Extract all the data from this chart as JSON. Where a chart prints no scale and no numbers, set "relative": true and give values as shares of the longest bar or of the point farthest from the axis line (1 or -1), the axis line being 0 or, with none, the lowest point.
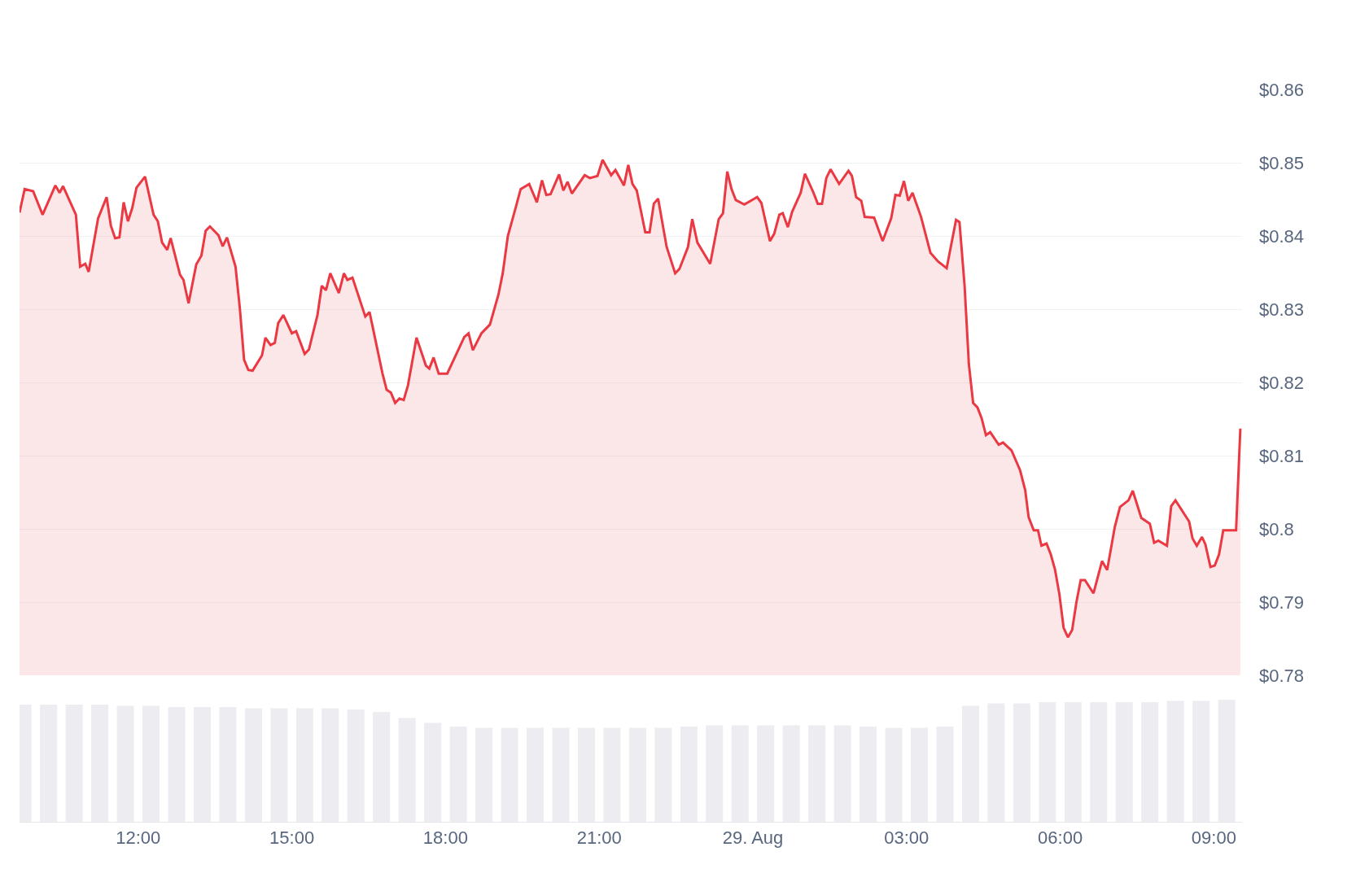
{
  "chart_data": [
    {
      "type": "area",
      "color": "#ea3943",
      "marker": "none",
      "line_style": "solid",
      "grid": "y",
      "tick_labels": "y",
      "x": [
        "--08-28T09:41",
        "--08-28T09:47",
        "--08-28T09:57",
        "--08-28T10:08",
        "--08-28T10:23",
        "--08-28T10:28",
        "--08-28T10:32",
        "--08-28T10:47",
        "--08-28T10:52",
        "--08-28T10:58",
        "--08-28T11:02",
        "--08-28T11:13",
        "--08-28T11:23",
        "--08-28T11:28",
        "--08-28T11:33",
        "--08-28T11:38",
        "--08-28T11:43",
        "--08-28T11:48",
        "--08-28T11:53",
        "--08-28T11:58",
        "--08-28T12:08",
        "--08-28T12:18",
        "--08-28T12:23",
        "--08-28T12:28",
        "--08-28T12:34",
        "--08-28T12:38",
        "--08-28T12:49",
        "--08-28T12:53",
        "--08-28T12:59",
        "--08-28T13:08",
        "--08-28T13:14",
        "--08-28T13:19",
        "--08-28T13:24",
        "--08-28T13:34",
        "--08-28T13:39",
        "--08-28T13:44",
        "--08-28T13:54",
        "--08-28T13:59",
        "--08-28T14:04",
        "--08-28T14:09",
        "--08-28T14:14",
        "--08-28T14:25",
        "--08-28T14:29",
        "--08-28T14:35",
        "--08-28T14:40",
        "--08-28T14:44",
        "--08-28T14:50",
        "--08-28T15:00",
        "--08-28T15:05",
        "--08-28T15:15",
        "--08-28T15:20",
        "--08-28T15:30",
        "--08-28T15:35",
        "--08-28T15:40",
        "--08-28T15:45",
        "--08-28T15:55",
        "--08-28T16:01",
        "--08-28T16:05",
        "--08-28T16:11",
        "--08-28T16:26",
        "--08-28T16:31",
        "--08-28T16:46",
        "--08-28T16:51",
        "--08-28T16:56",
        "--08-28T17:01",
        "--08-28T17:06",
        "--08-28T17:11",
        "--08-28T17:16",
        "--08-28T17:26",
        "--08-28T17:37",
        "--08-28T17:41",
        "--08-28T17:46",
        "--08-28T17:52",
        "--08-28T18:02",
        "--08-28T18:12",
        "--08-28T18:22",
        "--08-28T18:27",
        "--08-28T18:32",
        "--08-28T18:42",
        "--08-28T18:52",
        "--08-28T19:02",
        "--08-28T19:07",
        "--08-28T19:13",
        "--08-28T19:22",
        "--08-28T19:28",
        "--08-28T19:38",
        "--08-28T19:47",
        "--08-28T19:53",
        "--08-28T19:58",
        "--08-28T20:03",
        "--08-28T20:13",
        "--08-28T20:18",
        "--08-28T20:23",
        "--08-28T20:28",
        "--08-28T20:43",
        "--08-28T20:49",
        "--08-28T20:58",
        "--08-28T21:04",
        "--08-28T21:14",
        "--08-28T21:19",
        "--08-28T21:29",
        "--08-28T21:34",
        "--08-28T21:39",
        "--08-28T21:44",
        "--08-28T21:54",
        "--08-28T21:59",
        "--08-28T22:04",
        "--08-28T22:09",
        "--08-28T22:19",
        "--08-28T22:29",
        "--08-28T22:34",
        "--08-28T22:44",
        "--08-28T22:49",
        "--08-28T22:55",
        "--08-28T23:10",
        "--08-28T23:20",
        "--08-28T23:25",
        "--08-28T23:30",
        "--08-28T23:35",
        "--08-28T23:40",
        "--08-28T23:50",
        "--08-29T00:05",
        "--08-29T00:10",
        "--08-29T00:20",
        "--08-29T00:25",
        "--08-29T00:31",
        "--08-29T00:35",
        "--08-29T00:41",
        "--08-29T00:46",
        "--08-29T00:56",
        "--08-29T01:01",
        "--08-29T01:11",
        "--08-29T01:16",
        "--08-29T01:21",
        "--08-29T01:26",
        "--08-29T01:31",
        "--08-29T01:41",
        "--08-29T01:52",
        "--08-29T01:56",
        "--08-29T02:01",
        "--08-29T02:07",
        "--08-29T02:11",
        "--08-29T02:22",
        "--08-29T02:32",
        "--08-29T02:42",
        "--08-29T02:47",
        "--08-29T02:52",
        "--08-29T02:57",
        "--08-29T03:02",
        "--08-29T03:07",
        "--08-29T03:17",
        "--08-29T03:28",
        "--08-29T03:37",
        "--08-29T03:47",
        "--08-29T03:58",
        "--08-29T04:02",
        "--08-29T04:08",
        "--08-29T04:13",
        "--08-29T04:18",
        "--08-29T04:23",
        "--08-29T04:28",
        "--08-29T04:33",
        "--08-29T04:38",
        "--08-29T04:48",
        "--08-29T04:53",
        "--08-29T05:03",
        "--08-29T05:13",
        "--08-29T05:19",
        "--08-29T05:23",
        "--08-29T05:29",
        "--08-29T05:34",
        "--08-29T05:38",
        "--08-29T05:44",
        "--08-29T05:49",
        "--08-29T05:54",
        "--08-29T05:59",
        "--08-29T06:04",
        "--08-29T06:09",
        "--08-29T06:14",
        "--08-29T06:19",
        "--08-29T06:24",
        "--08-29T06:29",
        "--08-29T06:39",
        "--08-29T06:49",
        "--08-29T06:55",
        "--08-29T07:04",
        "--08-29T07:10",
        "--08-29T07:20",
        "--08-29T07:25",
        "--08-29T07:35",
        "--08-29T07:45",
        "--08-29T07:50",
        "--08-29T07:55",
        "--08-29T08:05",
        "--08-29T08:10",
        "--08-29T08:15",
        "--08-29T08:31",
        "--08-29T08:35",
        "--08-29T08:40",
        "--08-29T08:46",
        "--08-29T08:50",
        "--08-29T08:56",
        "--08-29T09:01",
        "--08-29T09:06",
        "--08-29T09:11",
        "--08-29T09:26",
        "--08-29T09:31"
      ],
      "values": [
        0.8432,
        0.8464,
        0.8461,
        0.8429,
        0.8469,
        0.8459,
        0.8468,
        0.8429,
        0.8358,
        0.8362,
        0.8351,
        0.8424,
        0.8453,
        0.8414,
        0.8397,
        0.8398,
        0.8446,
        0.842,
        0.8438,
        0.8466,
        0.8481,
        0.8429,
        0.842,
        0.8391,
        0.8381,
        0.8397,
        0.8347,
        0.834,
        0.8308,
        0.8361,
        0.8373,
        0.8407,
        0.8413,
        0.8401,
        0.8386,
        0.8398,
        0.8358,
        0.8302,
        0.8231,
        0.8217,
        0.8216,
        0.8237,
        0.8261,
        0.8251,
        0.8254,
        0.8281,
        0.8292,
        0.8267,
        0.827,
        0.8239,
        0.8245,
        0.8292,
        0.8332,
        0.8326,
        0.8349,
        0.8322,
        0.8349,
        0.834,
        0.8343,
        0.829,
        0.8296,
        0.8213,
        0.819,
        0.8186,
        0.8172,
        0.8178,
        0.8176,
        0.8196,
        0.8261,
        0.8223,
        0.8219,
        0.8234,
        0.8212,
        0.8212,
        0.8237,
        0.8262,
        0.8267,
        0.8244,
        0.8267,
        0.8279,
        0.832,
        0.8349,
        0.84,
        0.8438,
        0.8464,
        0.8471,
        0.8446,
        0.8476,
        0.8456,
        0.8457,
        0.8484,
        0.8462,
        0.8474,
        0.8458,
        0.8483,
        0.8479,
        0.8482,
        0.8504,
        0.8483,
        0.849,
        0.8469,
        0.8497,
        0.8471,
        0.8462,
        0.8405,
        0.8405,
        0.8444,
        0.8451,
        0.8385,
        0.8349,
        0.8355,
        0.8385,
        0.8423,
        0.8391,
        0.8362,
        0.8423,
        0.8431,
        0.8488,
        0.8464,
        0.8449,
        0.8443,
        0.8453,
        0.8445,
        0.8393,
        0.8403,
        0.8429,
        0.8431,
        0.8412,
        0.8433,
        0.8459,
        0.8485,
        0.8459,
        0.8444,
        0.8444,
        0.8479,
        0.8491,
        0.8471,
        0.8489,
        0.8482,
        0.8453,
        0.8448,
        0.8426,
        0.8425,
        0.8393,
        0.8424,
        0.8456,
        0.8455,
        0.8475,
        0.8448,
        0.8459,
        0.8426,
        0.8377,
        0.8365,
        0.8356,
        0.8422,
        0.8419,
        0.8332,
        0.8225,
        0.8172,
        0.8166,
        0.8151,
        0.8128,
        0.8132,
        0.8115,
        0.8118,
        0.8107,
        0.808,
        0.8053,
        0.8016,
        0.7998,
        0.7998,
        0.7977,
        0.798,
        0.7965,
        0.7944,
        0.7911,
        0.7865,
        0.7852,
        0.7862,
        0.79,
        0.793,
        0.793,
        0.7912,
        0.7956,
        0.7944,
        0.8003,
        0.803,
        0.8039,
        0.8052,
        0.8015,
        0.8007,
        0.7981,
        0.7984,
        0.7977,
        0.8031,
        0.8039,
        0.801,
        0.7987,
        0.7977,
        0.7989,
        0.7979,
        0.7948,
        0.795,
        0.7965,
        0.7998,
        0.7998,
        0.8137
      ],
      "xlim": [
        "--08-28T09:41",
        "--08-29T09:33"
      ],
      "xticks": [
        {
          "value": "--08-28T12:00",
          "label": "12:00"
        },
        {
          "value": "--08-28T15:00",
          "label": "15:00"
        },
        {
          "value": "--08-28T18:00",
          "label": "18:00"
        },
        {
          "value": "--08-28T21:00",
          "label": "21:00"
        },
        {
          "value": "--08-29T00:00",
          "label": "29. Aug"
        },
        {
          "value": "--08-29T03:00",
          "label": "03:00"
        },
        {
          "value": "--08-29T06:00",
          "label": "06:00"
        },
        {
          "value": "--08-29T09:00",
          "label": "09:00"
        }
      ],
      "ylim": [
        0.78,
        0.86
      ],
      "yticks": [
        {
          "value": 0.78,
          "label": "$0.78"
        },
        {
          "value": 0.79,
          "label": "$0.79"
        },
        {
          "value": 0.8,
          "label": "$0.8"
        },
        {
          "value": 0.81,
          "label": "$0.81"
        },
        {
          "value": 0.82,
          "label": "$0.82"
        },
        {
          "value": 0.83,
          "label": "$0.83"
        },
        {
          "value": 0.84,
          "label": "$0.84"
        },
        {
          "value": 0.85,
          "label": "$0.85"
        },
        {
          "value": 0.86,
          "label": "$0.86"
        }
      ]
    },
    {
      "type": "bar",
      "relative": true,
      "color": "#ececf1",
      "tick_labels": "x",
      "x": [
        "--08-28T09:45",
        "--08-28T10:15",
        "--08-28T10:45",
        "--08-28T11:15",
        "--08-28T11:45",
        "--08-28T12:15",
        "--08-28T12:45",
        "--08-28T13:15",
        "--08-28T13:45",
        "--08-28T14:15",
        "--08-28T14:45",
        "--08-28T15:15",
        "--08-28T15:45",
        "--08-28T16:15",
        "--08-28T16:45",
        "--08-28T17:15",
        "--08-28T17:45",
        "--08-28T18:15",
        "--08-28T18:45",
        "--08-28T19:15",
        "--08-28T19:45",
        "--08-28T20:15",
        "--08-28T20:45",
        "--08-28T21:15",
        "--08-28T21:45",
        "--08-28T22:15",
        "--08-28T22:45",
        "--08-28T23:15",
        "--08-28T23:45",
        "--08-29T00:15",
        "--08-29T00:45",
        "--08-29T01:15",
        "--08-29T01:45",
        "--08-29T02:15",
        "--08-29T02:45",
        "--08-29T03:15",
        "--08-29T03:45",
        "--08-29T04:15",
        "--08-29T04:45",
        "--08-29T05:15",
        "--08-29T05:45",
        "--08-29T06:15",
        "--08-29T06:45",
        "--08-29T07:15",
        "--08-29T07:45",
        "--08-29T08:15",
        "--08-29T08:45",
        "--08-29T09:15"
      ],
      "values": [
        0.96,
        0.96,
        0.96,
        0.96,
        0.95,
        0.95,
        0.94,
        0.94,
        0.94,
        0.93,
        0.93,
        0.93,
        0.93,
        0.92,
        0.9,
        0.85,
        0.81,
        0.78,
        0.77,
        0.77,
        0.77,
        0.77,
        0.77,
        0.77,
        0.77,
        0.77,
        0.78,
        0.79,
        0.79,
        0.79,
        0.79,
        0.79,
        0.79,
        0.78,
        0.77,
        0.77,
        0.78,
        0.95,
        0.97,
        0.97,
        0.98,
        0.98,
        0.98,
        0.98,
        0.98,
        0.99,
        0.99,
        1
      ],
      "xlim": [
        "--08-28T09:41",
        "--08-29T09:33"
      ],
      "xticks": [
        {
          "value": "--08-28T12:00",
          "label": "12:00"
        },
        {
          "value": "--08-28T15:00",
          "label": "15:00"
        },
        {
          "value": "--08-28T18:00",
          "label": "18:00"
        },
        {
          "value": "--08-28T21:00",
          "label": "21:00"
        },
        {
          "value": "--08-29T00:00",
          "label": "29. Aug"
        },
        {
          "value": "--08-29T03:00",
          "label": "03:00"
        },
        {
          "value": "--08-29T06:00",
          "label": "06:00"
        },
        {
          "value": "--08-29T09:00",
          "label": "09:00"
        }
      ]
    }
  ]
}
